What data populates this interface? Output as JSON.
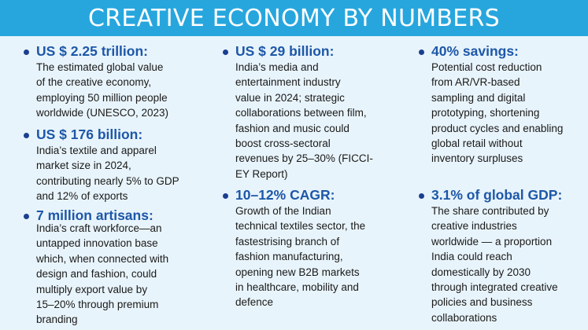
{
  "header": {
    "title": "CREATIVE ECONOMY BY NUMBERS"
  },
  "colors": {
    "header_bg": "#27a6de",
    "page_bg": "#e8f4fb",
    "stat_text": "#1d57a8",
    "bullet": "#1b3f8f"
  },
  "columns": [
    {
      "items": [
        {
          "stat": "US $ 2.25 trillion:",
          "lines": [
            "The estimated global value",
            "of the creative economy,",
            "employing 50 million people",
            "worldwide (UNESCO, 2023)"
          ]
        },
        {
          "stat": "US $ 176 billion:",
          "lines": [
            "India’s textile and apparel",
            "market size in 2024,",
            "contributing nearly 5% to GDP",
            "and 12% of exports"
          ]
        },
        {
          "stat": "7 million artisans:",
          "lines": [
            "India’s craft workforce—an",
            "untapped innovation base",
            "which, when connected with",
            "design and fashion, could",
            "multiply export value by",
            "15–20% through premium",
            "branding"
          ]
        }
      ]
    },
    {
      "items": [
        {
          "stat": "US $ 29 billion:",
          "lines": [
            "India’s media and",
            "entertainment industry",
            "value in 2024; strategic",
            "collaborations between film,",
            "fashion and music could",
            "boost cross-sectoral",
            "revenues by 25–30% (FICCI-",
            "EY Report)"
          ]
        },
        {
          "stat": "10–12% CAGR:",
          "lines": [
            "Growth of the Indian",
            "technical textiles sector, the",
            "fastestrising branch of",
            "fashion manufacturing,",
            "opening new B2B markets",
            "in healthcare, mobility and",
            "defence"
          ]
        }
      ]
    },
    {
      "items": [
        {
          "stat": "40% savings:",
          "lines": [
            "Potential cost reduction",
            "from AR/VR-based",
            "sampling and digital",
            "prototyping, shortening",
            "product cycles and enabling",
            "global retail without",
            "inventory surpluses"
          ]
        },
        {
          "stat": "3.1% of global GDP:",
          "lines": [
            "The share contributed by",
            "creative industries",
            "worldwide — a proportion",
            "India could reach",
            "domestically by 2030",
            "through integrated creative",
            "policies and business",
            "collaborations"
          ]
        }
      ]
    }
  ]
}
